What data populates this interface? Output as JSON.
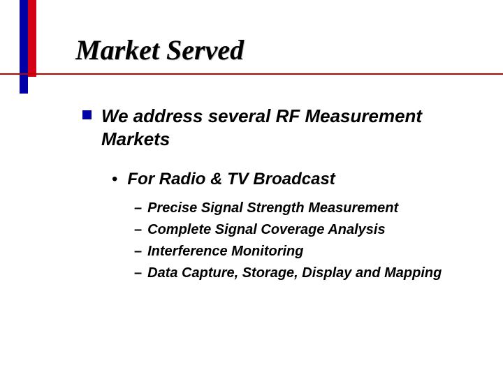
{
  "accent": {
    "blue": "#0000a6",
    "red": "#d40015",
    "rule": "#c00000"
  },
  "title": "Market Served",
  "body": {
    "lvl1": "We address several RF Measurement Markets",
    "lvl2": "For Radio & TV Broadcast",
    "lvl3": [
      "Precise Signal Strength Measurement",
      "Complete Signal Coverage Analysis",
      "Interference Monitoring",
      "Data Capture, Storage, Display and Mapping"
    ]
  }
}
